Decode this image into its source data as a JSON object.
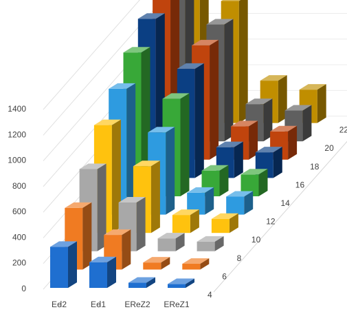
{
  "chart_data": {
    "type": "bar",
    "subtype": "3d-column",
    "title": "",
    "xlabel": "",
    "ylabel": "",
    "ylim": [
      0,
      1400
    ],
    "yticks": [
      0,
      200,
      400,
      600,
      800,
      1000,
      1200,
      1400
    ],
    "grid": true,
    "legend": "none",
    "categories": [
      "Eꟈ2",
      "Eꟈ1",
      "EReZ2",
      "EReZ1"
    ],
    "depth_labels": [
      "4",
      "6",
      "8",
      "10",
      "12",
      "14",
      "16",
      "18",
      "20",
      "22"
    ],
    "series": [
      {
        "depth": "4",
        "color": "#1f6fd0",
        "values": [
          320,
          200,
          40,
          30
        ]
      },
      {
        "depth": "6",
        "color": "#f07b22",
        "values": [
          480,
          270,
          55,
          45
        ]
      },
      {
        "depth": "8",
        "color": "#a8a8a8",
        "values": [
          640,
          380,
          100,
          75
        ]
      },
      {
        "depth": "10",
        "color": "#ffc20e",
        "values": [
          840,
          520,
          140,
          110
        ]
      },
      {
        "depth": "12",
        "color": "#2e9be0",
        "values": [
          980,
          640,
          170,
          140
        ]
      },
      {
        "depth": "14",
        "color": "#38a838",
        "values": [
          1120,
          760,
          200,
          170
        ]
      },
      {
        "depth": "16",
        "color": "#0b3f83",
        "values": [
          1240,
          850,
          240,
          200
        ]
      },
      {
        "depth": "18",
        "color": "#c0440d",
        "values": [
          1300,
          890,
          260,
          220
        ]
      },
      {
        "depth": "20",
        "color": "#5f5f5f",
        "values": [
          1340,
          910,
          290,
          240
        ]
      },
      {
        "depth": "22",
        "color": "#c08e00",
        "values": [
          1360,
          950,
          330,
          260
        ]
      }
    ]
  }
}
